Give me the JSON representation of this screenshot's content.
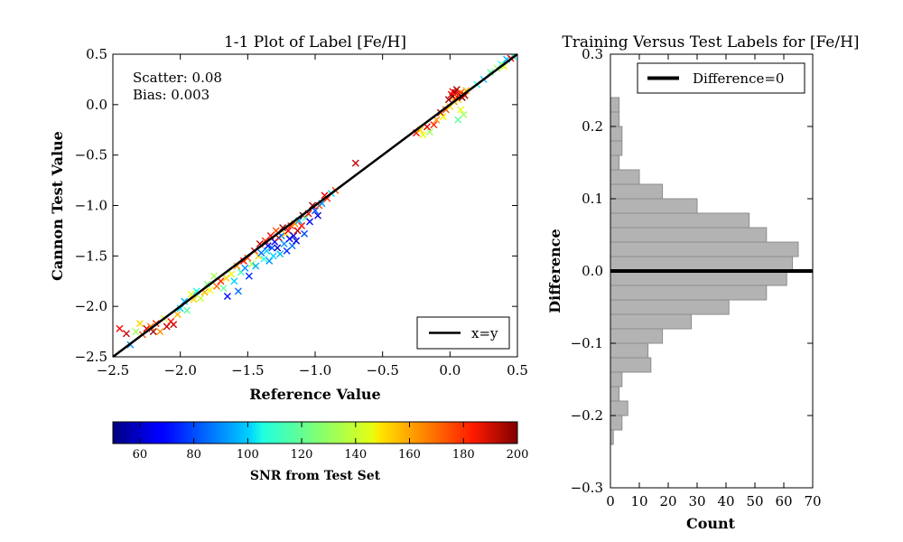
{
  "colors": {
    "identity_line": "#000000",
    "hist_fill": "#b3b3b3",
    "hist_edge": "#8c8c8c",
    "zero_line": "#000000"
  },
  "chart_data": [
    {
      "type": "scatter",
      "title": "1-1 Plot of Label [Fe/H]",
      "xlabel": "Reference Value",
      "ylabel": "Cannon Test Value",
      "xlim": [
        -2.5,
        0.5
      ],
      "ylim": [
        -2.5,
        0.5
      ],
      "xticks": [
        "−2.5",
        "−2.0",
        "−1.5",
        "−1.0",
        "−0.5",
        "0.0",
        "0.5"
      ],
      "yticks": [
        "−2.5",
        "−2.0",
        "−1.5",
        "−1.0",
        "−0.5",
        "0.0",
        "0.5"
      ],
      "annotations": [
        "Scatter: 0.08",
        "Bias: 0.003"
      ],
      "legend": {
        "entries": [
          "x=y"
        ],
        "placement": "lower-right"
      },
      "marker": "x",
      "color_by": "SNR",
      "colorbar": {
        "label": "SNR from Test Set",
        "min": 50,
        "max": 200,
        "ticks": [
          "60",
          "80",
          "100",
          "120",
          "140",
          "160",
          "180",
          "200"
        ],
        "colormap": "jet"
      },
      "line": {
        "name": "x=y",
        "x": [
          -2.5,
          0.5
        ],
        "y": [
          -2.5,
          0.5
        ]
      },
      "points": [
        {
          "x": -2.45,
          "y": -2.22,
          "snr": 180
        },
        {
          "x": -2.4,
          "y": -2.27,
          "snr": 190
        },
        {
          "x": -2.37,
          "y": -2.38,
          "snr": 90
        },
        {
          "x": -2.33,
          "y": -2.25,
          "snr": 130
        },
        {
          "x": -2.3,
          "y": -2.17,
          "snr": 150
        },
        {
          "x": -2.28,
          "y": -2.28,
          "snr": 170
        },
        {
          "x": -2.25,
          "y": -2.22,
          "snr": 185
        },
        {
          "x": -2.22,
          "y": -2.2,
          "snr": 165
        },
        {
          "x": -2.2,
          "y": -2.25,
          "snr": 195
        },
        {
          "x": -2.18,
          "y": -2.17,
          "snr": 175
        },
        {
          "x": -2.15,
          "y": -2.25,
          "snr": 160
        },
        {
          "x": -2.12,
          "y": -2.12,
          "snr": 140
        },
        {
          "x": -2.1,
          "y": -2.2,
          "snr": 190
        },
        {
          "x": -2.07,
          "y": -2.15,
          "snr": 178
        },
        {
          "x": -2.05,
          "y": -2.18,
          "snr": 188
        },
        {
          "x": -2.02,
          "y": -2.08,
          "snr": 155
        },
        {
          "x": -2.0,
          "y": -2.02,
          "snr": 100
        },
        {
          "x": -1.97,
          "y": -1.95,
          "snr": 95
        },
        {
          "x": -1.95,
          "y": -2.04,
          "snr": 120
        },
        {
          "x": -1.92,
          "y": -1.88,
          "snr": 140
        },
        {
          "x": -1.9,
          "y": -1.93,
          "snr": 150
        },
        {
          "x": -1.88,
          "y": -1.85,
          "snr": 110
        },
        {
          "x": -1.85,
          "y": -1.92,
          "snr": 135
        },
        {
          "x": -1.82,
          "y": -1.86,
          "snr": 155
        },
        {
          "x": -1.8,
          "y": -1.78,
          "snr": 125
        },
        {
          "x": -1.78,
          "y": -1.84,
          "snr": 145
        },
        {
          "x": -1.75,
          "y": -1.7,
          "snr": 130
        },
        {
          "x": -1.73,
          "y": -1.8,
          "snr": 165
        },
        {
          "x": -1.7,
          "y": -1.75,
          "snr": 175
        },
        {
          "x": -1.68,
          "y": -1.82,
          "snr": 120
        },
        {
          "x": -1.66,
          "y": -1.72,
          "snr": 150
        },
        {
          "x": -1.65,
          "y": -1.9,
          "snr": 70
        },
        {
          "x": -1.62,
          "y": -1.68,
          "snr": 140
        },
        {
          "x": -1.6,
          "y": -1.75,
          "snr": 100
        },
        {
          "x": -1.58,
          "y": -1.6,
          "snr": 160
        },
        {
          "x": -1.57,
          "y": -1.85,
          "snr": 85
        },
        {
          "x": -1.55,
          "y": -1.66,
          "snr": 115
        },
        {
          "x": -1.53,
          "y": -1.55,
          "snr": 180
        },
        {
          "x": -1.52,
          "y": -1.62,
          "snr": 90
        },
        {
          "x": -1.5,
          "y": -1.52,
          "snr": 170
        },
        {
          "x": -1.49,
          "y": -1.7,
          "snr": 75
        },
        {
          "x": -1.47,
          "y": -1.58,
          "snr": 130
        },
        {
          "x": -1.45,
          "y": -1.45,
          "snr": 185
        },
        {
          "x": -1.44,
          "y": -1.6,
          "snr": 95
        },
        {
          "x": -1.42,
          "y": -1.5,
          "snr": 150
        },
        {
          "x": -1.41,
          "y": -1.38,
          "snr": 190
        },
        {
          "x": -1.4,
          "y": -1.47,
          "snr": 85
        },
        {
          "x": -1.38,
          "y": -1.53,
          "snr": 110
        },
        {
          "x": -1.37,
          "y": -1.35,
          "snr": 175
        },
        {
          "x": -1.36,
          "y": -1.45,
          "snr": 100
        },
        {
          "x": -1.35,
          "y": -1.4,
          "snr": 65
        },
        {
          "x": -1.34,
          "y": -1.55,
          "snr": 90
        },
        {
          "x": -1.33,
          "y": -1.3,
          "snr": 180
        },
        {
          "x": -1.32,
          "y": -1.42,
          "snr": 80
        },
        {
          "x": -1.31,
          "y": -1.5,
          "snr": 100
        },
        {
          "x": -1.3,
          "y": -1.36,
          "snr": 70
        },
        {
          "x": -1.29,
          "y": -1.25,
          "snr": 170
        },
        {
          "x": -1.28,
          "y": -1.42,
          "snr": 60
        },
        {
          "x": -1.27,
          "y": -1.32,
          "snr": 190
        },
        {
          "x": -1.26,
          "y": -1.48,
          "snr": 95
        },
        {
          "x": -1.25,
          "y": -1.3,
          "snr": 85
        },
        {
          "x": -1.24,
          "y": -1.22,
          "snr": 195
        },
        {
          "x": -1.23,
          "y": -1.38,
          "snr": 90
        },
        {
          "x": -1.22,
          "y": -1.28,
          "snr": 150
        },
        {
          "x": -1.21,
          "y": -1.45,
          "snr": 75
        },
        {
          "x": -1.2,
          "y": -1.25,
          "snr": 185
        },
        {
          "x": -1.19,
          "y": -1.33,
          "snr": 70
        },
        {
          "x": -1.18,
          "y": -1.2,
          "snr": 175
        },
        {
          "x": -1.17,
          "y": -1.4,
          "snr": 85
        },
        {
          "x": -1.16,
          "y": -1.3,
          "snr": 60
        },
        {
          "x": -1.15,
          "y": -1.18,
          "snr": 160
        },
        {
          "x": -1.14,
          "y": -1.35,
          "snr": 65
        },
        {
          "x": -1.13,
          "y": -1.25,
          "snr": 190
        },
        {
          "x": -1.12,
          "y": -1.15,
          "snr": 95
        },
        {
          "x": -1.1,
          "y": -1.2,
          "snr": 180
        },
        {
          "x": -1.09,
          "y": -1.1,
          "snr": 200
        },
        {
          "x": -1.08,
          "y": -1.28,
          "snr": 80
        },
        {
          "x": -1.07,
          "y": -1.12,
          "snr": 120
        },
        {
          "x": -1.05,
          "y": -1.08,
          "snr": 185
        },
        {
          "x": -1.04,
          "y": -1.16,
          "snr": 70
        },
        {
          "x": -1.02,
          "y": -1.0,
          "snr": 195
        },
        {
          "x": -1.0,
          "y": -1.05,
          "snr": 80
        },
        {
          "x": -0.98,
          "y": -1.1,
          "snr": 65
        },
        {
          "x": -0.97,
          "y": -1.0,
          "snr": 170
        },
        {
          "x": -0.95,
          "y": -0.98,
          "snr": 90
        },
        {
          "x": -0.93,
          "y": -0.9,
          "snr": 185
        },
        {
          "x": -0.91,
          "y": -0.93,
          "snr": 175
        },
        {
          "x": -0.88,
          "y": -0.88,
          "snr": 100
        },
        {
          "x": -0.85,
          "y": -0.85,
          "snr": 170
        },
        {
          "x": -0.7,
          "y": -0.58,
          "snr": 190
        },
        {
          "x": -0.25,
          "y": -0.28,
          "snr": 180
        },
        {
          "x": -0.22,
          "y": -0.25,
          "snr": 150
        },
        {
          "x": -0.2,
          "y": -0.3,
          "snr": 140
        },
        {
          "x": -0.17,
          "y": -0.22,
          "snr": 185
        },
        {
          "x": -0.15,
          "y": -0.27,
          "snr": 130
        },
        {
          "x": -0.12,
          "y": -0.2,
          "snr": 175
        },
        {
          "x": -0.1,
          "y": -0.15,
          "snr": 160
        },
        {
          "x": -0.07,
          "y": -0.08,
          "snr": 190
        },
        {
          "x": -0.05,
          "y": -0.12,
          "snr": 145
        },
        {
          "x": -0.03,
          "y": -0.05,
          "snr": 170
        },
        {
          "x": -0.01,
          "y": 0.05,
          "snr": 195
        },
        {
          "x": 0.0,
          "y": -0.02,
          "snr": 150
        },
        {
          "x": 0.01,
          "y": 0.1,
          "snr": 185
        },
        {
          "x": 0.02,
          "y": 0.08,
          "snr": 200
        },
        {
          "x": 0.02,
          "y": 0.13,
          "snr": 180
        },
        {
          "x": 0.03,
          "y": 0.03,
          "snr": 160
        },
        {
          "x": 0.04,
          "y": 0.12,
          "snr": 190
        },
        {
          "x": 0.05,
          "y": 0.08,
          "snr": 175
        },
        {
          "x": 0.05,
          "y": 0.15,
          "snr": 195
        },
        {
          "x": 0.06,
          "y": 0.05,
          "snr": 150
        },
        {
          "x": 0.07,
          "y": 0.1,
          "snr": 185
        },
        {
          "x": 0.08,
          "y": 0.12,
          "snr": 170
        },
        {
          "x": 0.09,
          "y": 0.07,
          "snr": 200
        },
        {
          "x": 0.1,
          "y": 0.11,
          "snr": 165
        },
        {
          "x": 0.11,
          "y": 0.09,
          "snr": 190
        },
        {
          "x": 0.12,
          "y": 0.14,
          "snr": 155
        },
        {
          "x": 0.08,
          "y": -0.05,
          "snr": 140
        },
        {
          "x": 0.1,
          "y": -0.1,
          "snr": 130
        },
        {
          "x": 0.06,
          "y": -0.15,
          "snr": 120
        },
        {
          "x": 0.2,
          "y": 0.2,
          "snr": 110
        },
        {
          "x": 0.25,
          "y": 0.25,
          "snr": 100
        },
        {
          "x": 0.3,
          "y": 0.32,
          "snr": 120
        },
        {
          "x": 0.35,
          "y": 0.36,
          "snr": 130
        },
        {
          "x": 0.38,
          "y": 0.4,
          "snr": 110
        },
        {
          "x": 0.4,
          "y": 0.38,
          "snr": 140
        },
        {
          "x": 0.42,
          "y": 0.45,
          "snr": 95
        },
        {
          "x": 0.45,
          "y": 0.46,
          "snr": 180
        },
        {
          "x": 0.47,
          "y": 0.48,
          "snr": 110
        }
      ]
    },
    {
      "type": "histogram",
      "title": "Training Versus Test Labels for [Fe/H]",
      "xlabel": "Count",
      "ylabel": "Difference",
      "orientation": "horizontal",
      "xlim": [
        0,
        70
      ],
      "ylim": [
        -0.3,
        0.3
      ],
      "xticks": [
        "0",
        "10",
        "20",
        "30",
        "40",
        "50",
        "60",
        "70"
      ],
      "yticks": [
        "−0.3",
        "−0.2",
        "−0.1",
        "0.0",
        "0.1",
        "0.2",
        "0.3"
      ],
      "legend": {
        "entries": [
          "Difference=0"
        ],
        "placement": "upper-right"
      },
      "zero_line": 0.0,
      "bins": [
        {
          "from": -0.24,
          "to": -0.22,
          "count": 1
        },
        {
          "from": -0.22,
          "to": -0.2,
          "count": 4
        },
        {
          "from": -0.2,
          "to": -0.18,
          "count": 6
        },
        {
          "from": -0.18,
          "to": -0.16,
          "count": 3
        },
        {
          "from": -0.16,
          "to": -0.14,
          "count": 4
        },
        {
          "from": -0.14,
          "to": -0.12,
          "count": 14
        },
        {
          "from": -0.12,
          "to": -0.1,
          "count": 13
        },
        {
          "from": -0.1,
          "to": -0.08,
          "count": 18
        },
        {
          "from": -0.08,
          "to": -0.06,
          "count": 28
        },
        {
          "from": -0.06,
          "to": -0.04,
          "count": 41
        },
        {
          "from": -0.04,
          "to": -0.02,
          "count": 54
        },
        {
          "from": -0.02,
          "to": 0.0,
          "count": 61
        },
        {
          "from": 0.0,
          "to": 0.02,
          "count": 63
        },
        {
          "from": 0.02,
          "to": 0.04,
          "count": 65
        },
        {
          "from": 0.04,
          "to": 0.06,
          "count": 54
        },
        {
          "from": 0.06,
          "to": 0.08,
          "count": 48
        },
        {
          "from": 0.08,
          "to": 0.1,
          "count": 30
        },
        {
          "from": 0.1,
          "to": 0.12,
          "count": 18
        },
        {
          "from": 0.12,
          "to": 0.14,
          "count": 10
        },
        {
          "from": 0.14,
          "to": 0.16,
          "count": 3
        },
        {
          "from": 0.16,
          "to": 0.18,
          "count": 4
        },
        {
          "from": 0.18,
          "to": 0.2,
          "count": 4
        },
        {
          "from": 0.2,
          "to": 0.22,
          "count": 3
        },
        {
          "from": 0.22,
          "to": 0.24,
          "count": 3
        }
      ]
    }
  ]
}
